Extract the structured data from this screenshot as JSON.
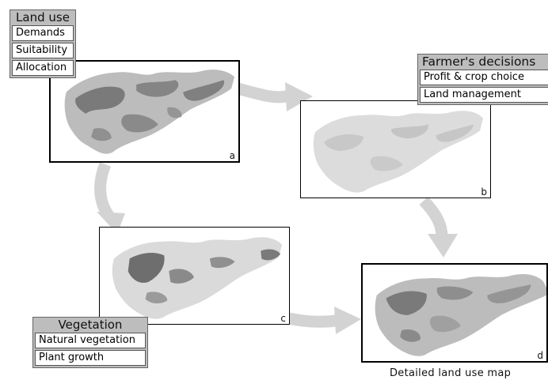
{
  "land_use": {
    "title": "Land use",
    "items": [
      "Demands",
      "Suitability",
      "Allocation"
    ]
  },
  "farmer": {
    "title": "Farmer's decisions",
    "items": [
      "Profit & crop choice",
      "Land management"
    ]
  },
  "vegetation": {
    "title": "Vegetation",
    "items": [
      "Natural vegetation",
      "Plant growth"
    ]
  },
  "panels": {
    "a": "a",
    "b": "b",
    "c": "c",
    "d": "d"
  },
  "caption": "Detailed land use map",
  "colors": {
    "arrow": "#d3d3d3",
    "box_header": "#bdbdbd",
    "map_light": "#dadada",
    "map_mid": "#bcbcbc",
    "map_dark": "#7a7a7a"
  }
}
